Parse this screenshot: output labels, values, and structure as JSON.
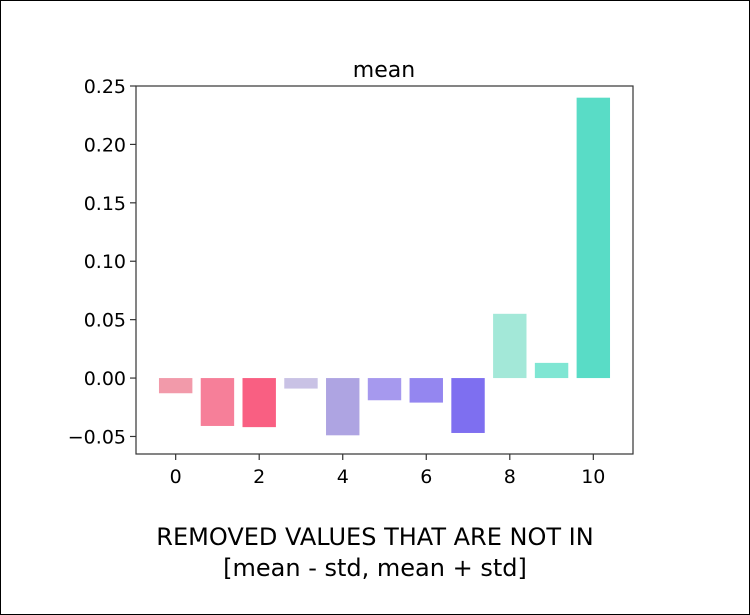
{
  "caption": {
    "line1": "REMOVED VALUES THAT ARE NOT IN",
    "line2": "[mean - std, mean + std]"
  },
  "chart_data": {
    "type": "bar",
    "title": "mean",
    "xlabel": "",
    "ylabel": "",
    "x": [
      0,
      1,
      2,
      3,
      4,
      5,
      6,
      7,
      8,
      9,
      10
    ],
    "values": [
      -0.013,
      -0.041,
      -0.042,
      -0.009,
      -0.049,
      -0.019,
      -0.021,
      -0.047,
      0.055,
      0.013,
      0.24
    ],
    "colors": [
      "#f29aaa",
      "#f67f99",
      "#f95f82",
      "#c9c2e5",
      "#aea4e2",
      "#a699ee",
      "#9486f0",
      "#7e6ff0",
      "#a3e8d8",
      "#7fe6d3",
      "#59dcc6"
    ],
    "xlim": [
      -0.95,
      10.95
    ],
    "ylim": [
      -0.065,
      0.25
    ],
    "xticks": [
      0,
      2,
      4,
      6,
      8,
      10
    ],
    "yticks": [
      -0.05,
      0.0,
      0.05,
      0.1,
      0.15,
      0.2,
      0.25
    ],
    "xtick_labels": [
      "0",
      "2",
      "4",
      "6",
      "8",
      "10"
    ],
    "ytick_labels": [
      "−0.05",
      "0.00",
      "0.05",
      "0.10",
      "0.15",
      "0.20",
      "0.25"
    ],
    "grid": false,
    "legend": false
  }
}
